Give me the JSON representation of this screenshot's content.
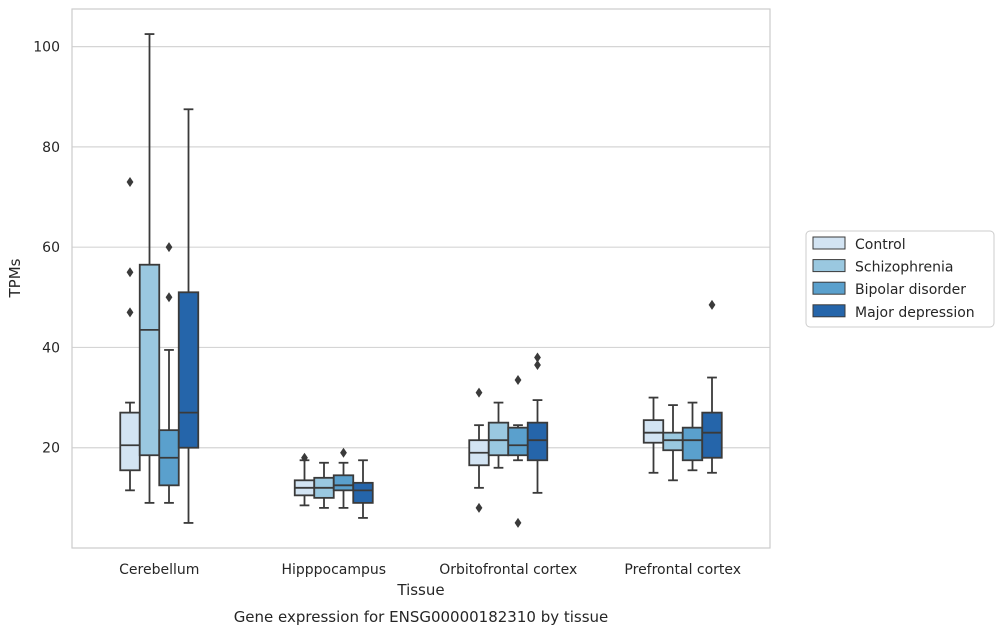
{
  "caption": "Gene expression for ENSG00000182310 by tissue",
  "colors": {
    "grid": "#d5d5d5",
    "frame": "#cccccc",
    "box_edge": "#3a3a3a"
  },
  "chart_data": {
    "type": "boxplot",
    "xlabel": "Tissue",
    "ylabel": "TPMs",
    "ylim": [
      0,
      107.5
    ],
    "yticks": [
      20,
      40,
      60,
      80,
      100
    ],
    "grid": "horizontal",
    "legend_position": "right",
    "categories": [
      "Cerebellum",
      "Hipppocampus",
      "Orbitofrontal cortex",
      "Prefrontal cortex"
    ],
    "series": [
      {
        "name": "Control",
        "color": "#d3e4f3",
        "boxes": [
          {
            "whislo": 11.5,
            "q1": 15.5,
            "med": 20.5,
            "q3": 27.0,
            "whishi": 29.0,
            "fliers": [
              73.0,
              55.0,
              47.0
            ]
          },
          {
            "whislo": 8.5,
            "q1": 10.5,
            "med": 12.0,
            "q3": 13.5,
            "whishi": 17.5,
            "fliers": [
              18.0
            ]
          },
          {
            "whislo": 12.0,
            "q1": 16.5,
            "med": 19.0,
            "q3": 21.5,
            "whishi": 24.5,
            "fliers": [
              31.0,
              8.0
            ]
          },
          {
            "whislo": 15.0,
            "q1": 21.0,
            "med": 23.0,
            "q3": 25.5,
            "whishi": 30.0,
            "fliers": []
          }
        ]
      },
      {
        "name": "Schizophrenia",
        "color": "#9ac8e0",
        "boxes": [
          {
            "whislo": 9.0,
            "q1": 18.5,
            "med": 43.5,
            "q3": 56.5,
            "whishi": 102.5,
            "fliers": []
          },
          {
            "whislo": 8.0,
            "q1": 10.0,
            "med": 12.0,
            "q3": 14.0,
            "whishi": 17.0,
            "fliers": []
          },
          {
            "whislo": 16.0,
            "q1": 18.5,
            "med": 21.5,
            "q3": 25.0,
            "whishi": 29.0,
            "fliers": []
          },
          {
            "whislo": 13.5,
            "q1": 19.5,
            "med": 21.5,
            "q3": 23.0,
            "whishi": 28.5,
            "fliers": []
          }
        ]
      },
      {
        "name": "Bipolar disorder",
        "color": "#5aa0cd",
        "boxes": [
          {
            "whislo": 9.0,
            "q1": 12.5,
            "med": 18.0,
            "q3": 23.5,
            "whishi": 39.5,
            "fliers": [
              60.0,
              50.0
            ]
          },
          {
            "whislo": 8.0,
            "q1": 11.5,
            "med": 12.5,
            "q3": 14.5,
            "whishi": 17.0,
            "fliers": [
              19.0
            ]
          },
          {
            "whislo": 17.5,
            "q1": 18.5,
            "med": 20.5,
            "q3": 24.0,
            "whishi": 24.5,
            "fliers": [
              33.5,
              5.0
            ]
          },
          {
            "whislo": 15.5,
            "q1": 17.5,
            "med": 21.5,
            "q3": 24.0,
            "whishi": 29.0,
            "fliers": []
          }
        ]
      },
      {
        "name": "Major depression",
        "color": "#2565aa",
        "boxes": [
          {
            "whislo": 5.0,
            "q1": 20.0,
            "med": 27.0,
            "q3": 51.0,
            "whishi": 87.5,
            "fliers": []
          },
          {
            "whislo": 6.0,
            "q1": 9.0,
            "med": 11.5,
            "q3": 13.0,
            "whishi": 17.5,
            "fliers": []
          },
          {
            "whislo": 11.0,
            "q1": 17.5,
            "med": 21.5,
            "q3": 25.0,
            "whishi": 29.5,
            "fliers": [
              38.0,
              36.5
            ]
          },
          {
            "whislo": 15.0,
            "q1": 18.0,
            "med": 23.0,
            "q3": 27.0,
            "whishi": 34.0,
            "fliers": [
              48.5
            ]
          }
        ]
      }
    ]
  }
}
